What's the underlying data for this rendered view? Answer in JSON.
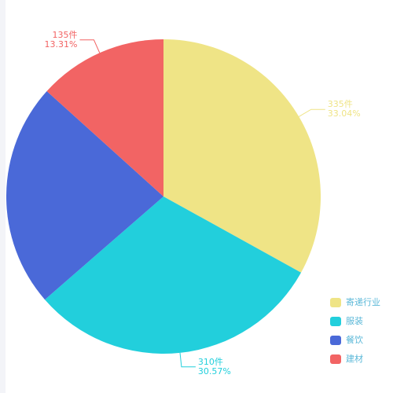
{
  "chart_data": {
    "type": "pie",
    "categories": [
      "寄递行业",
      "服装",
      "餐饮",
      "建材"
    ],
    "values": [
      335,
      310,
      234,
      135
    ],
    "value_labels": [
      "335件",
      "310件",
      null,
      "135件"
    ],
    "percent_labels": [
      "33.04%",
      "30.57%",
      null,
      "13.31%"
    ],
    "colors": [
      "#efe486",
      "#22cfdc",
      "#4a69d8",
      "#f26464"
    ],
    "legend": "bottom-right"
  }
}
